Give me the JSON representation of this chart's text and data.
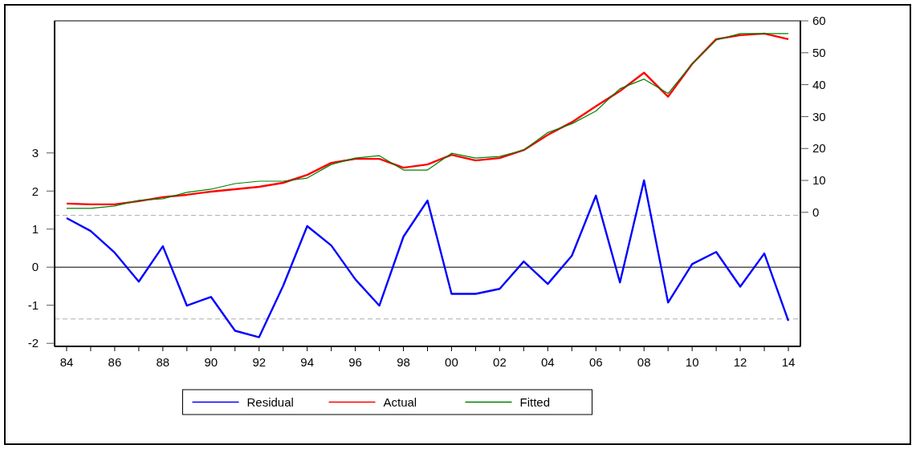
{
  "chart_data": {
    "type": "line",
    "x": [
      1984,
      1985,
      1986,
      1987,
      1988,
      1989,
      1990,
      1991,
      1992,
      1993,
      1994,
      1995,
      1996,
      1997,
      1998,
      1999,
      2000,
      2001,
      2002,
      2003,
      2004,
      2005,
      2006,
      2007,
      2008,
      2009,
      2010,
      2011,
      2012,
      2013,
      2014
    ],
    "xlim": [
      1983.5,
      2014.5
    ],
    "xticks": [
      {
        "value": 1984,
        "label": "84"
      },
      {
        "value": 1985,
        "label": null
      },
      {
        "value": 1986,
        "label": "86"
      },
      {
        "value": 1987,
        "label": null
      },
      {
        "value": 1988,
        "label": "88"
      },
      {
        "value": 1989,
        "label": null
      },
      {
        "value": 1990,
        "label": "90"
      },
      {
        "value": 1991,
        "label": null
      },
      {
        "value": 1992,
        "label": "92"
      },
      {
        "value": 1993,
        "label": null
      },
      {
        "value": 1994,
        "label": "94"
      },
      {
        "value": 1995,
        "label": null
      },
      {
        "value": 1996,
        "label": "96"
      },
      {
        "value": 1997,
        "label": null
      },
      {
        "value": 1998,
        "label": "98"
      },
      {
        "value": 1999,
        "label": null
      },
      {
        "value": 2000,
        "label": "00"
      },
      {
        "value": 2001,
        "label": null
      },
      {
        "value": 2002,
        "label": "02"
      },
      {
        "value": 2003,
        "label": null
      },
      {
        "value": 2004,
        "label": "04"
      },
      {
        "value": 2005,
        "label": null
      },
      {
        "value": 2006,
        "label": "06"
      },
      {
        "value": 2007,
        "label": null
      },
      {
        "value": 2008,
        "label": "08"
      },
      {
        "value": 2009,
        "label": null
      },
      {
        "value": 2010,
        "label": "10"
      },
      {
        "value": 2011,
        "label": null
      },
      {
        "value": 2012,
        "label": "12"
      },
      {
        "value": 2013,
        "label": null
      },
      {
        "value": 2014,
        "label": "14"
      }
    ],
    "ylim": [
      -2.08,
      6.47
    ],
    "yticks": [
      -2,
      -1,
      0,
      1,
      2,
      3
    ],
    "y2lim": [
      -42,
      60
    ],
    "y2ticks": [
      0,
      10,
      20,
      30,
      40,
      50,
      60
    ],
    "series": [
      {
        "name": "Residual",
        "color": "#0000ff",
        "values": [
          1.29,
          0.95,
          0.38,
          -0.38,
          0.55,
          -1.01,
          -0.78,
          -1.67,
          -1.84,
          -0.49,
          1.08,
          0.57,
          -0.32,
          -1.01,
          0.8,
          1.75,
          -0.7,
          -0.7,
          -0.57,
          0.15,
          -0.44,
          0.3,
          1.88,
          -0.4,
          2.28,
          -0.93,
          0.08,
          0.4,
          -0.51,
          0.36,
          -1.41
        ]
      },
      {
        "name": "Actual",
        "color": "#ff0000",
        "axis": "y2",
        "values": [
          2.75,
          2.5,
          2.5,
          3.5,
          4.75,
          5.5,
          6.5,
          7.25,
          8,
          9.25,
          11.75,
          15.5,
          16.75,
          16.75,
          14,
          15,
          18,
          16.25,
          17,
          19.5,
          24.25,
          28.25,
          33.25,
          38,
          43.75,
          36.25,
          46.5,
          54.25,
          55.5,
          56,
          54.25
        ]
      },
      {
        "name": "Fitted",
        "color": "#008000",
        "axis": "y2",
        "values": [
          1.25,
          1.25,
          2,
          3.75,
          4.25,
          6.25,
          7.25,
          9,
          9.75,
          9.75,
          10.75,
          15,
          17,
          17.75,
          13.25,
          13.25,
          18.5,
          17,
          17.5,
          19.5,
          25,
          27.75,
          31.75,
          38.75,
          41.75,
          37.25,
          46.5,
          54,
          56,
          56,
          56
        ]
      }
    ],
    "ref_lines": [
      {
        "axis": "y",
        "value": 0,
        "color": "#000000",
        "line_style": "solid"
      },
      {
        "axis": "y",
        "value": 1.36,
        "color": "#aaaaaa",
        "line_style": "dashed"
      },
      {
        "axis": "y",
        "value": -1.36,
        "color": "#aaaaaa",
        "line_style": "dashed"
      }
    ],
    "legend": "bottom",
    "grid": false,
    "marker": "none",
    "line_style": "solid"
  }
}
